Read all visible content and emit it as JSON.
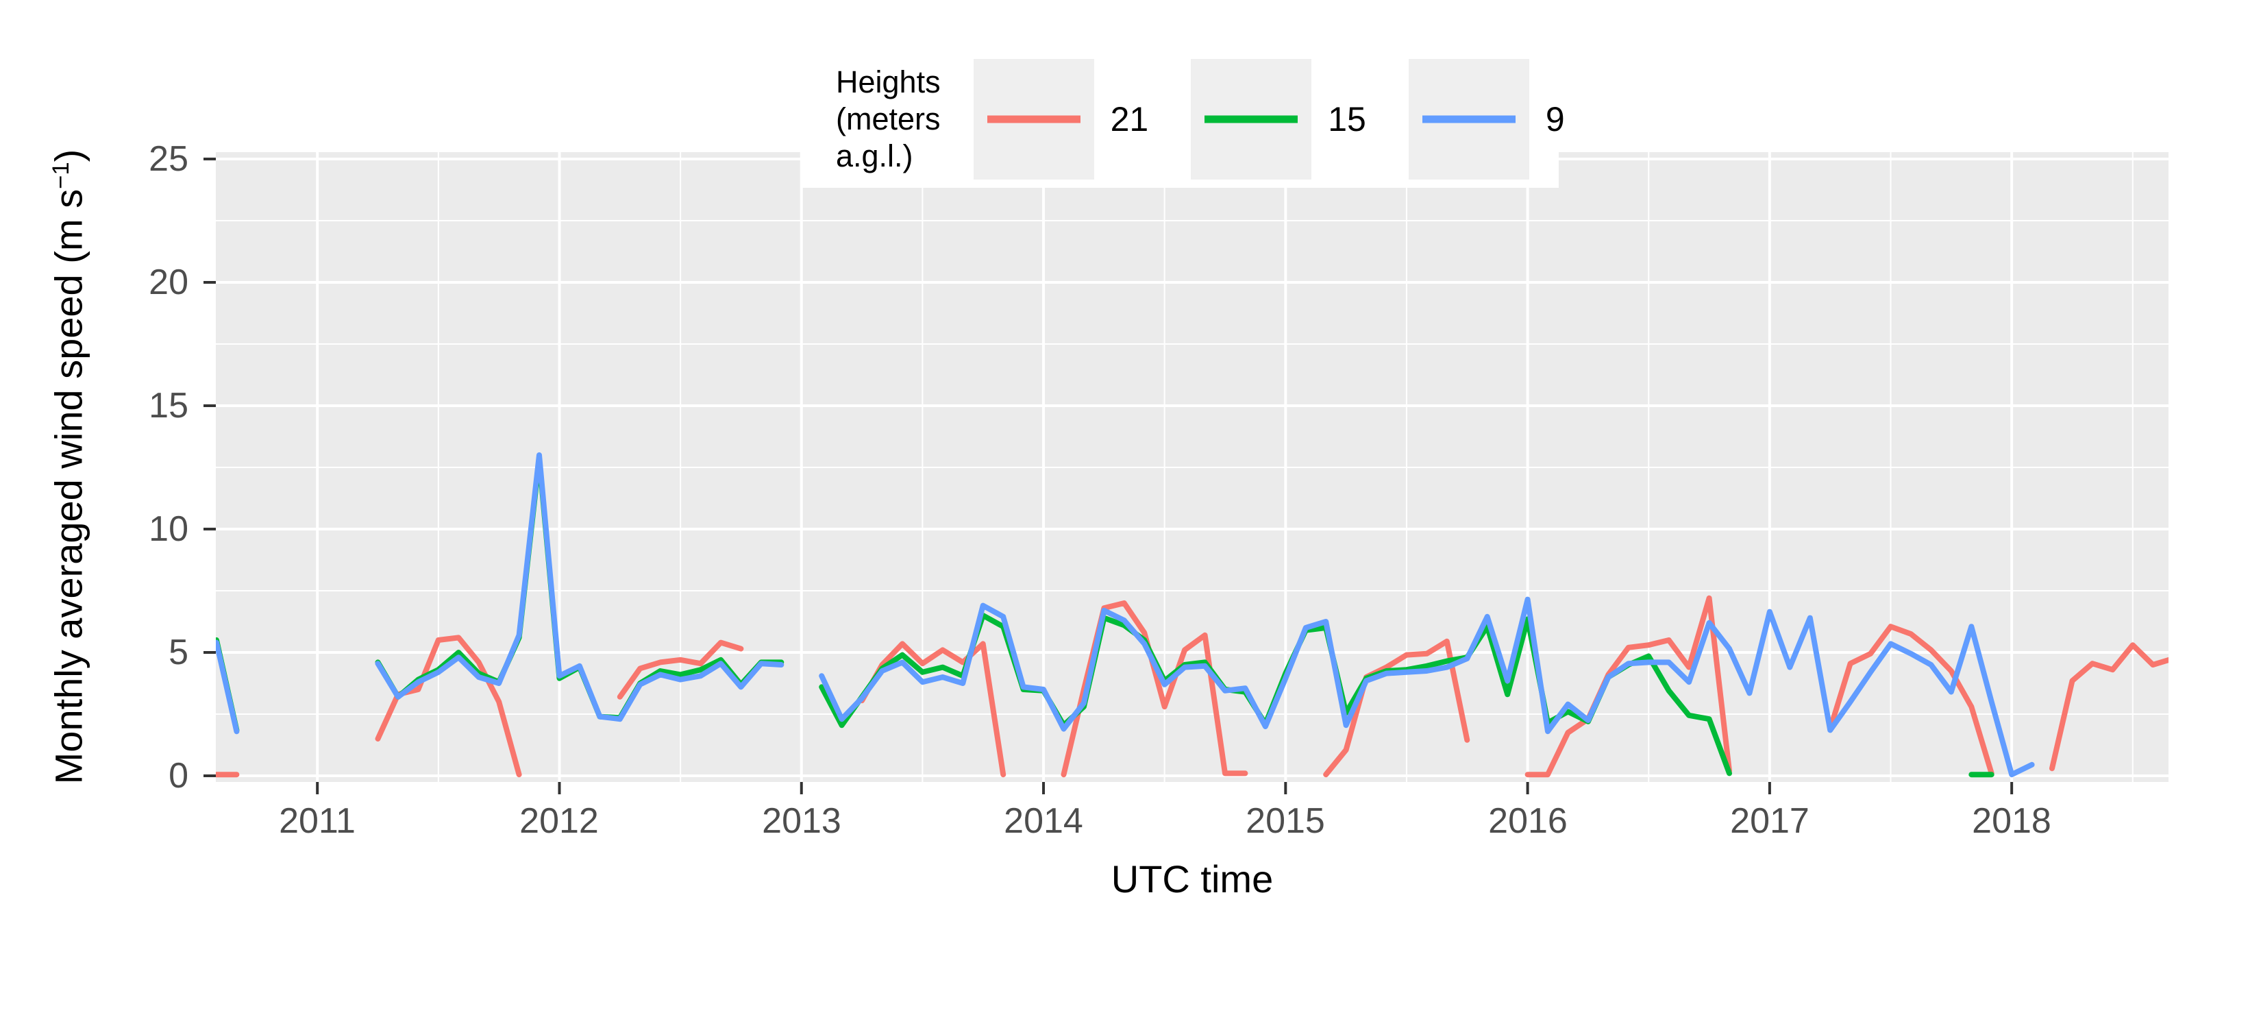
{
  "axes": {
    "x_title": "UTC time",
    "y_title_prefix": "Monthly averaged wind speed (m s",
    "y_title_sup": "−1",
    "y_title_suffix": ")",
    "x_tick_labels": [
      "2011",
      "2012",
      "2013",
      "2014",
      "2015",
      "2016",
      "2017",
      "2018"
    ],
    "y_tick_labels": [
      "0",
      "5",
      "10",
      "15",
      "20",
      "25"
    ]
  },
  "legend": {
    "title_line1": "Heights",
    "title_line2": "(meters a.g.l.)",
    "entries": [
      {
        "label": "21"
      },
      {
        "label": "15"
      },
      {
        "label": "9"
      }
    ]
  },
  "colors": {
    "panel_bg": "#ebebeb",
    "grid": "#ffffff",
    "tick_mark": "#333333",
    "tick_text": "#4d4d4d",
    "legend_key_bg": "#efefef"
  },
  "chart_data": {
    "type": "line",
    "title": "",
    "xlabel": "UTC time",
    "ylabel": "Monthly averaged wind speed (m s^-1)",
    "ylim": [
      0,
      25
    ],
    "y_ticks": [
      0,
      5,
      10,
      15,
      20,
      25
    ],
    "y_minor_ticks": [
      2.5,
      7.5,
      12.5,
      17.5,
      22.5
    ],
    "x_tick_years": [
      2011,
      2012,
      2013,
      2014,
      2015,
      2016,
      2017,
      2018
    ],
    "x_start_month": "2010-08",
    "x_end_month": "2018-09",
    "grid": "white major+minor on gray panel",
    "legend_position": "top",
    "legend_title": "Heights (meters a.g.l.)",
    "series": [
      {
        "name": "21",
        "color": "#F8766D",
        "values": [
          0.05,
          0.05,
          null,
          null,
          null,
          null,
          null,
          null,
          1.5,
          3.3,
          3.5,
          5.5,
          5.6,
          4.6,
          3.0,
          0.05,
          null,
          null,
          null,
          null,
          3.2,
          4.35,
          4.6,
          4.7,
          4.55,
          5.4,
          5.15,
          null,
          null,
          null,
          null,
          null,
          3.05,
          4.5,
          5.35,
          4.55,
          5.1,
          4.6,
          5.35,
          0.05,
          null,
          null,
          0.05,
          3.5,
          6.8,
          7.0,
          5.8,
          2.8,
          5.1,
          5.7,
          0.1,
          0.1,
          null,
          null,
          null,
          0.05,
          1.05,
          4.0,
          4.4,
          4.9,
          4.95,
          5.45,
          1.45,
          null,
          null,
          0.05,
          0.05,
          1.75,
          2.3,
          4.1,
          5.2,
          5.3,
          5.5,
          4.4,
          7.2,
          0.2,
          null,
          null,
          null,
          null,
          1.9,
          4.55,
          4.95,
          6.05,
          5.75,
          5.1,
          4.25,
          2.8,
          0.1,
          null,
          null,
          0.3,
          3.85,
          4.55,
          4.3,
          5.3,
          4.5,
          4.75
        ]
      },
      {
        "name": "15",
        "color": "#00BA38",
        "values": [
          5.5,
          1.85,
          null,
          null,
          null,
          null,
          null,
          null,
          4.6,
          3.2,
          3.9,
          4.3,
          5.0,
          4.15,
          3.8,
          5.6,
          12.85,
          3.95,
          4.4,
          2.4,
          2.35,
          3.75,
          4.25,
          4.1,
          4.3,
          4.7,
          3.7,
          4.6,
          4.6,
          null,
          3.6,
          2.05,
          3.2,
          4.35,
          4.9,
          4.2,
          4.4,
          4.05,
          6.5,
          6.05,
          3.5,
          3.45,
          2.05,
          2.8,
          6.4,
          6.1,
          5.5,
          3.85,
          4.5,
          4.6,
          3.5,
          3.4,
          2.1,
          4.15,
          5.9,
          6.0,
          2.55,
          3.95,
          4.25,
          4.3,
          4.45,
          4.65,
          4.8,
          6.05,
          3.3,
          6.35,
          2.15,
          2.6,
          2.2,
          4.0,
          4.5,
          4.85,
          3.45,
          2.45,
          2.3,
          0.1,
          null,
          null,
          null,
          null,
          null,
          null,
          null,
          null,
          null,
          null,
          null,
          0.05,
          0.05,
          null,
          null,
          null,
          null,
          null,
          null,
          null,
          null,
          null
        ]
      },
      {
        "name": "9",
        "color": "#619CFF",
        "values": [
          5.4,
          1.8,
          null,
          null,
          null,
          null,
          null,
          null,
          4.55,
          3.2,
          3.8,
          4.2,
          4.8,
          4.0,
          3.75,
          5.7,
          13.0,
          4.05,
          4.45,
          2.4,
          2.3,
          3.7,
          4.1,
          3.9,
          4.05,
          4.55,
          3.6,
          4.55,
          4.5,
          null,
          4.05,
          2.3,
          3.15,
          4.25,
          4.6,
          3.8,
          4.0,
          3.75,
          6.9,
          6.45,
          3.6,
          3.5,
          1.9,
          2.95,
          6.7,
          6.3,
          5.35,
          3.7,
          4.4,
          4.45,
          3.45,
          3.55,
          2.0,
          3.95,
          6.0,
          6.25,
          2.05,
          3.85,
          4.15,
          4.2,
          4.25,
          4.4,
          4.75,
          6.45,
          3.85,
          7.15,
          1.8,
          2.9,
          2.25,
          4.0,
          4.55,
          4.6,
          4.6,
          3.8,
          6.2,
          5.15,
          3.35,
          6.65,
          4.4,
          6.4,
          1.85,
          3.0,
          4.2,
          5.35,
          4.95,
          4.5,
          3.4,
          6.05,
          3.0,
          0.05,
          0.45,
          null,
          null,
          null,
          null,
          null,
          null,
          null
        ]
      }
    ]
  }
}
